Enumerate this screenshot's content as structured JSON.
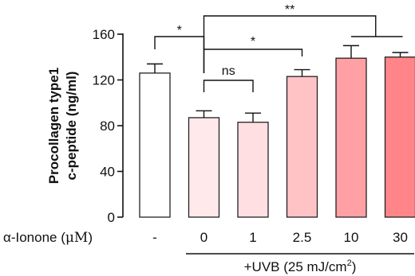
{
  "chart_data": {
    "type": "bar",
    "title": "",
    "ylabel_lines": [
      "Procollagen type1",
      "c-peptide (ng/ml)"
    ],
    "ylim": [
      0,
      160
    ],
    "yticks": [
      "0",
      "40",
      "80",
      "120",
      "160"
    ],
    "yticks_values": [
      0,
      40,
      80,
      120,
      160
    ],
    "row_label": {
      "prefix": "α-Ionone (",
      "unit": "μM",
      "suffix": ")"
    },
    "treatment_label": {
      "main": "+UVB (25 mJ/cm",
      "sup": "2",
      "end": ")"
    },
    "categories": [
      "-",
      "0",
      "1",
      "2.5",
      "10",
      "30"
    ],
    "values": [
      126,
      87,
      83,
      123,
      139,
      140
    ],
    "errors": [
      8,
      6,
      8,
      6,
      11,
      4
    ],
    "colors": [
      "#ffffff",
      "#ffe9ea",
      "#ffdfe1",
      "#ffc2c5",
      "#ffa0a4",
      "#ff8589"
    ],
    "edge_color": "#222222",
    "significance": [
      {
        "text": "*",
        "from": 0,
        "to": 1
      },
      {
        "text": "ns",
        "from": 1,
        "to": 2
      },
      {
        "text": "*",
        "from": 1,
        "to": 3
      },
      {
        "text": "**",
        "from": 1,
        "to_group": [
          4,
          5
        ]
      }
    ]
  }
}
